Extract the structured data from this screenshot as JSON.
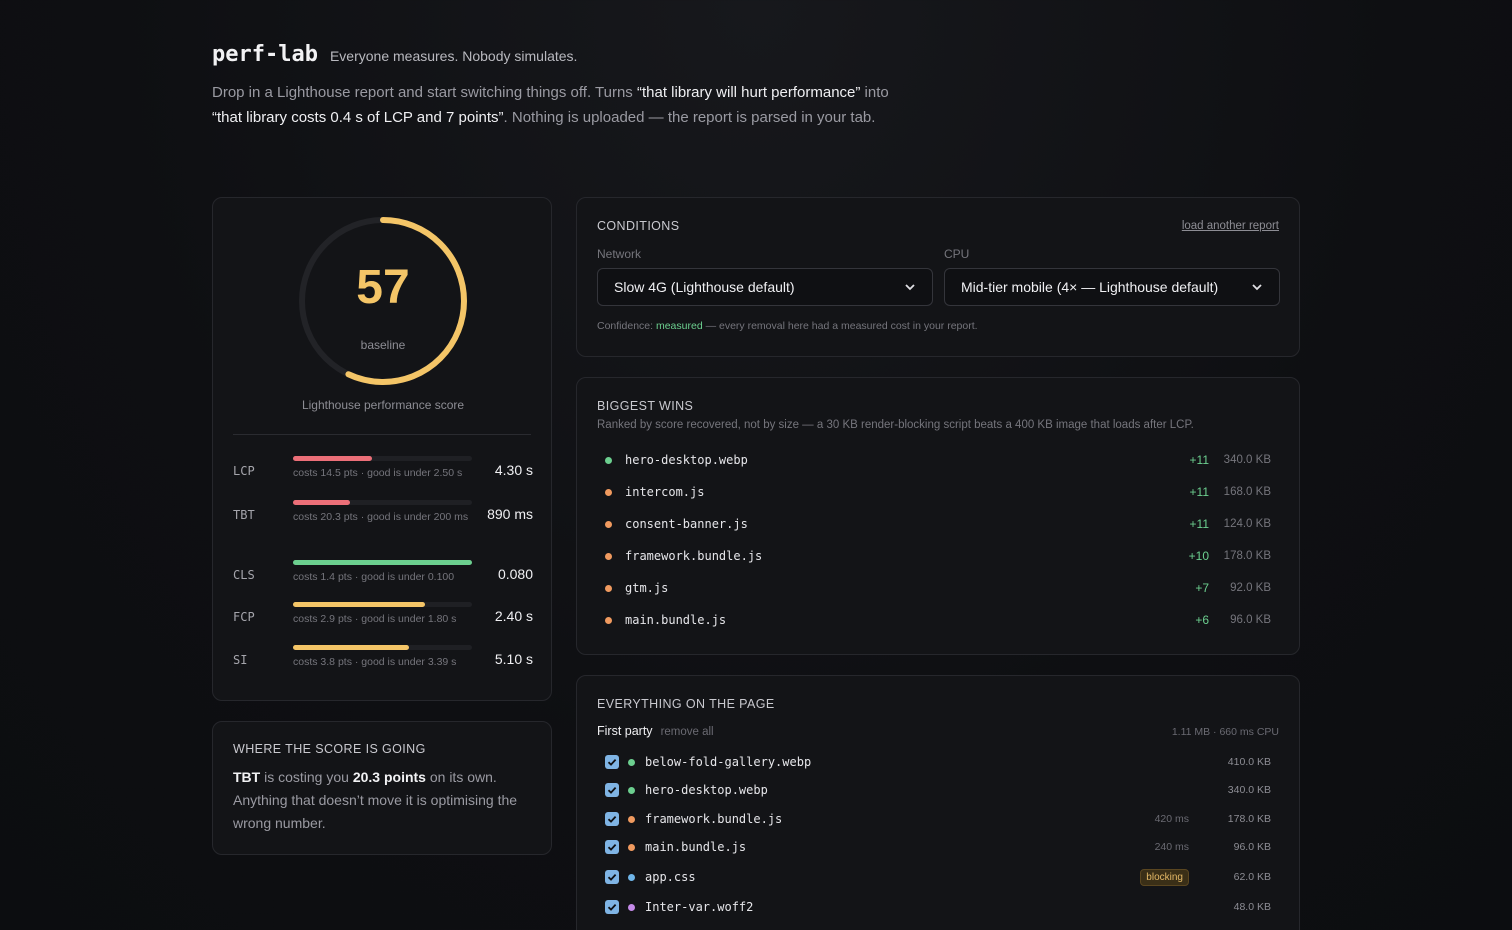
{
  "header": {
    "brand": "perf-lab",
    "tagline": "Everyone measures. Nobody simulates.",
    "intro_1": "Drop in a Lighthouse report and start switching things off. Turns ",
    "intro_hl1": "“that library will hurt performance”",
    "intro_2": " into ",
    "intro_hl2": "“that library costs 0.4 s of LCP and 7 points”",
    "intro_3": ". Nothing is uploaded — the report is parsed in your tab."
  },
  "score": {
    "value": "57",
    "fraction": 0.57,
    "label": "baseline",
    "caption": "Lighthouse performance score",
    "color": "#f4c567"
  },
  "metrics": [
    {
      "name": "LCP",
      "note": "costs 14.5 pts · good is under 2.50 s",
      "value": "4.30 s",
      "fill": 0.44,
      "color": "#ec6f78"
    },
    {
      "name": "TBT",
      "note": "costs 20.3 pts · good is under 200 ms",
      "value": "890 ms",
      "fill": 0.32,
      "color": "#ec6f78"
    },
    {
      "name": "CLS",
      "note": "costs 1.4 pts · good is under 0.100",
      "value": "0.080",
      "fill": 1.0,
      "color": "#6ccf8f"
    },
    {
      "name": "FCP",
      "note": "costs 2.9 pts · good is under 1.80 s",
      "value": "2.40 s",
      "fill": 0.74,
      "color": "#f4c567"
    },
    {
      "name": "SI",
      "note": "costs 3.8 pts · good is under 3.39 s",
      "value": "5.10 s",
      "fill": 0.65,
      "color": "#f4c567"
    }
  ],
  "where": {
    "title": "WHERE THE SCORE IS GOING",
    "metric": "TBT",
    "text_1": " is costing you ",
    "points": "20.3 points",
    "text_2": " on its own. Anything that doesn’t move it is optimising the wrong number."
  },
  "conditions": {
    "title": "CONDITIONS",
    "load_link": "load another report",
    "network_label": "Network",
    "network_value": "Slow 4G (Lighthouse default)",
    "cpu_label": "CPU",
    "cpu_value": "Mid-tier mobile (4× — Lighthouse default)",
    "confidence_prefix": "Confidence: ",
    "confidence_value": "measured",
    "confidence_suffix": " — every removal here had a measured cost in your report."
  },
  "wins": {
    "title": "BIGGEST WINS",
    "subtitle": "Ranked by score recovered, not by size — a 30 KB render-blocking script beats a 400 KB image that loads after LCP.",
    "items": [
      {
        "name": "hero-desktop.webp",
        "pts": "+11",
        "size": "340.0 KB",
        "color": "#6ccf8f"
      },
      {
        "name": "intercom.js",
        "pts": "+11",
        "size": "168.0 KB",
        "color": "#f09a5f"
      },
      {
        "name": "consent-banner.js",
        "pts": "+11",
        "size": "124.0 KB",
        "color": "#f09a5f"
      },
      {
        "name": "framework.bundle.js",
        "pts": "+10",
        "size": "178.0 KB",
        "color": "#f09a5f"
      },
      {
        "name": "gtm.js",
        "pts": "+7",
        "size": "92.0 KB",
        "color": "#f09a5f"
      },
      {
        "name": "main.bundle.js",
        "pts": "+6",
        "size": "96.0 KB",
        "color": "#f09a5f"
      }
    ]
  },
  "everything": {
    "title": "EVERYTHING ON THE PAGE",
    "party": "First party",
    "remove_all": "remove all",
    "summary": "1.11 MB · 660 ms CPU",
    "items": [
      {
        "name": "below-fold-gallery.webp",
        "cpu": "",
        "badge": "",
        "size": "410.0 KB",
        "color": "#6ccf8f"
      },
      {
        "name": "hero-desktop.webp",
        "cpu": "",
        "badge": "",
        "size": "340.0 KB",
        "color": "#6ccf8f"
      },
      {
        "name": "framework.bundle.js",
        "cpu": "420 ms",
        "badge": "",
        "size": "178.0 KB",
        "color": "#f09a5f"
      },
      {
        "name": "main.bundle.js",
        "cpu": "240 ms",
        "badge": "",
        "size": "96.0 KB",
        "color": "#f09a5f"
      },
      {
        "name": "app.css",
        "cpu": "",
        "badge": "blocking",
        "size": "62.0 KB",
        "color": "#6fb5e8"
      },
      {
        "name": "Inter-var.woff2",
        "cpu": "",
        "badge": "",
        "size": "48.0 KB",
        "color": "#c48ae8"
      }
    ]
  }
}
